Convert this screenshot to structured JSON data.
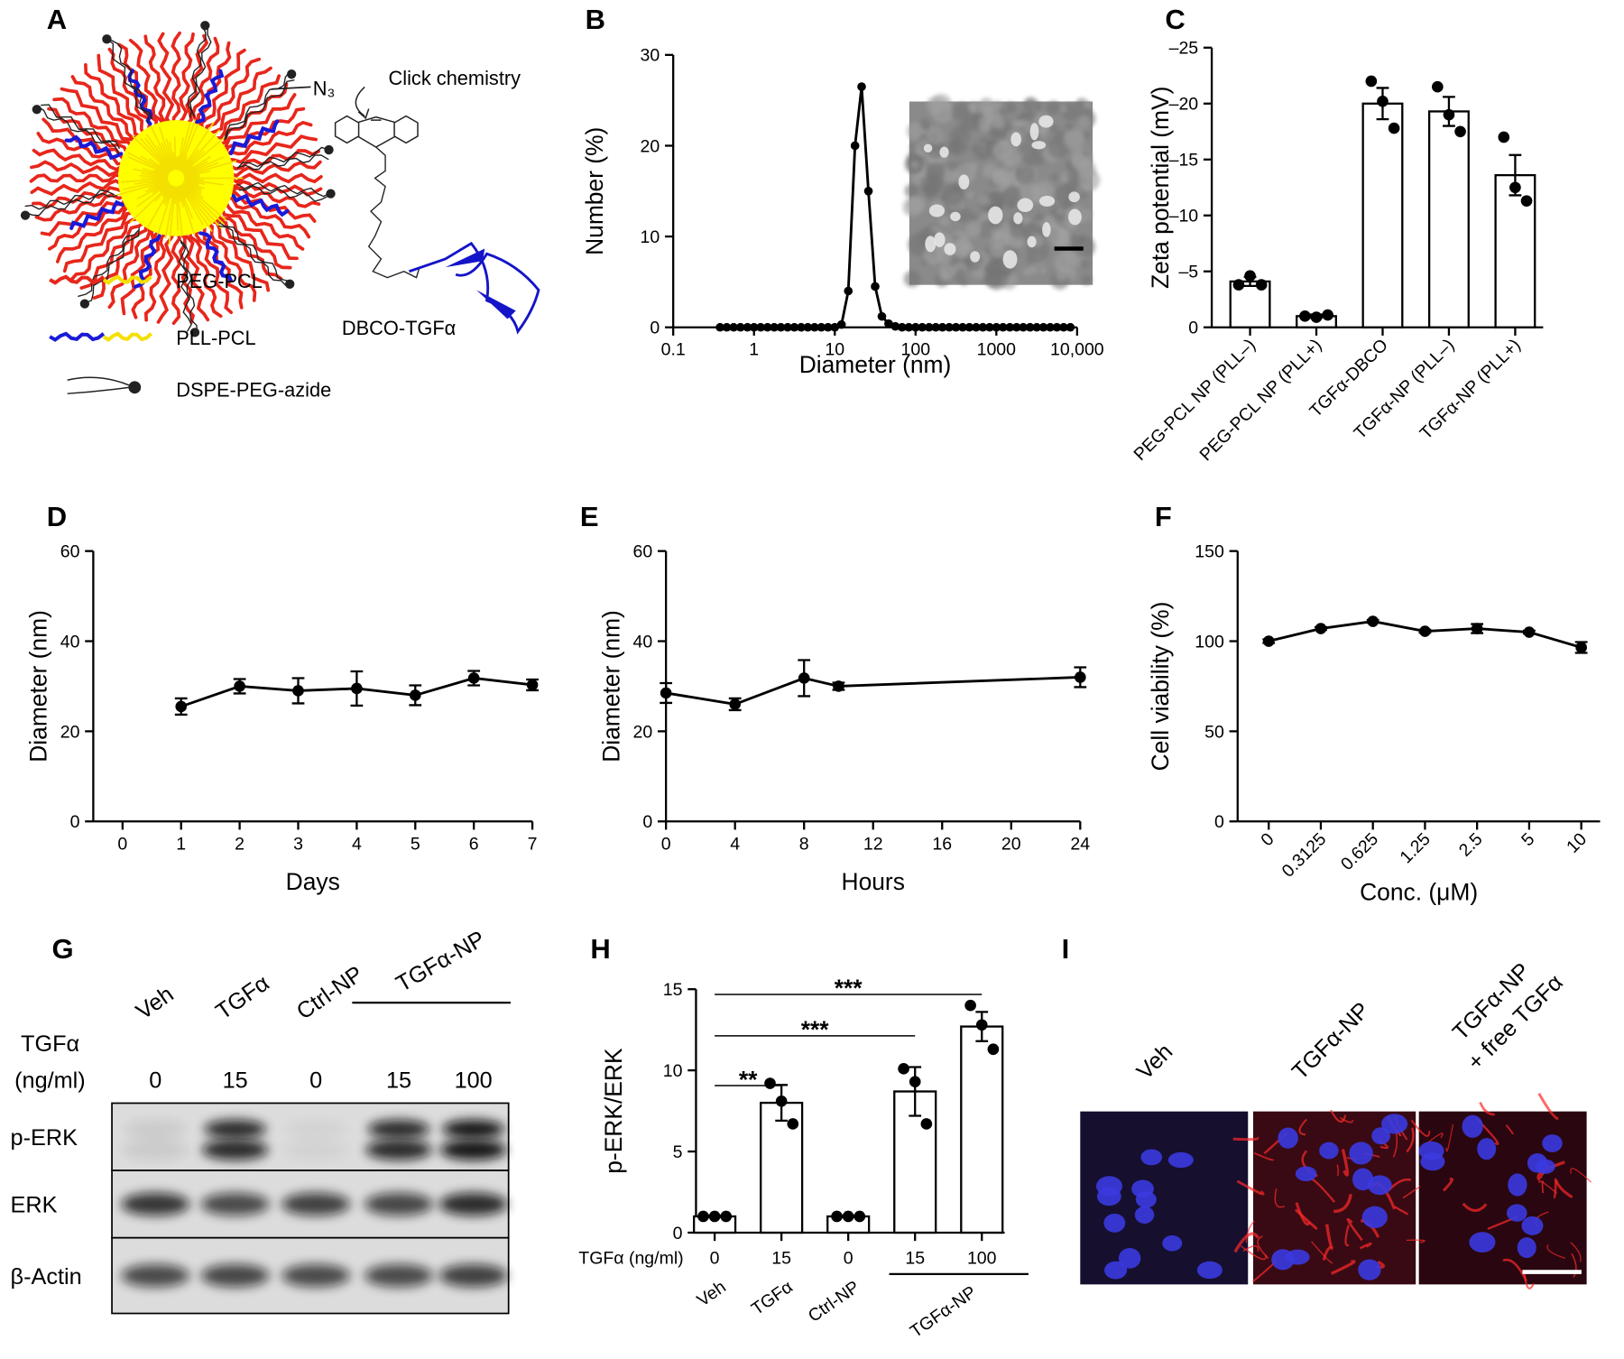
{
  "schematic": {
    "panel": "A",
    "click_label": "Click chemistry",
    "azide_label": "N₃",
    "conjugate_label": "DBCO-TGFα",
    "legend": [
      "PEG-PCL",
      "PLL-PCL",
      "DSPE-PEG-azide"
    ]
  },
  "chart_data": [
    {
      "panel": "B",
      "type": "line",
      "xlog": true,
      "x": [
        0.38,
        0.46,
        0.56,
        0.68,
        0.83,
        1,
        1.21,
        1.47,
        1.78,
        2.15,
        2.61,
        3.16,
        3.83,
        4.64,
        5.62,
        6.81,
        8.25,
        10,
        12.1,
        14.7,
        17.8,
        21.5,
        26.1,
        31.6,
        38.3,
        46.4,
        56.2,
        68.1,
        82.5,
        100,
        121,
        147,
        178,
        215,
        261,
        316,
        383,
        464,
        562,
        681,
        825,
        1000,
        1210,
        1470,
        1780,
        2150,
        2610,
        3160,
        3830,
        4640,
        5620,
        6810,
        8250
      ],
      "values": [
        0,
        0,
        0,
        0,
        0,
        0,
        0,
        0,
        0,
        0,
        0,
        0,
        0,
        0,
        0,
        0,
        0,
        0,
        0.3,
        4,
        20,
        26.5,
        15,
        4.5,
        1.2,
        0.4,
        0.1,
        0,
        0,
        0,
        0,
        0,
        0,
        0,
        0,
        0,
        0,
        0,
        0,
        0,
        0,
        0,
        0,
        0,
        0,
        0,
        0,
        0,
        0,
        0,
        0,
        0,
        0
      ],
      "xlim": [
        0.1,
        10000
      ],
      "xticks": [
        0.1,
        1,
        10,
        100,
        1000,
        {
          "value": 10000,
          "label": "10,000"
        }
      ],
      "ylim": [
        0,
        30
      ],
      "yticks": [
        0,
        10,
        20,
        30
      ],
      "xlabel": "Diameter (nm)",
      "ylabel": "Number (%)",
      "color": "#000000"
    },
    {
      "panel": "C",
      "type": "bar",
      "categories": [
        "PEG-PCL NP (PLL–)",
        "PEG-PCL NP (PLL+)",
        "TGFα-DBCO",
        "TGFα-NP (PLL–)",
        "TGFα-NP (PLL+)"
      ],
      "values": [
        -4.1,
        -1,
        -20,
        -19.3,
        -13.6
      ],
      "errors": [
        0.4,
        0.15,
        1.4,
        1.3,
        1.8
      ],
      "points": [
        [
          -3.8,
          -4.6,
          -3.8
        ],
        [
          -1,
          -0.9,
          -1.1
        ],
        [
          -22,
          -20.2,
          -17.8
        ],
        [
          -21.5,
          -19,
          -17.5
        ],
        [
          -17,
          -12.5,
          -11.3
        ]
      ],
      "ylim": [
        0,
        -25
      ],
      "yticks": [
        0,
        {
          "value": -5,
          "label": "–5"
        },
        {
          "value": -10,
          "label": "–10"
        },
        {
          "value": -15,
          "label": "–15"
        },
        {
          "value": -20,
          "label": "–20"
        },
        {
          "value": -25,
          "label": "–25"
        }
      ],
      "ylabel": "Zeta potential (mV)",
      "color": "#ffffff"
    },
    {
      "panel": "D",
      "type": "line",
      "x": [
        1,
        2,
        3,
        4,
        5,
        6,
        7
      ],
      "values": [
        25.5,
        30,
        29,
        29.5,
        28,
        31.8,
        30.3
      ],
      "errors": [
        1.8,
        1.6,
        2.8,
        3.8,
        2.2,
        1.6,
        1.2
      ],
      "xlim": [
        -0.5,
        7
      ],
      "xticks": [
        0,
        1,
        2,
        3,
        4,
        5,
        6,
        7
      ],
      "ylim": [
        0,
        60
      ],
      "yticks": [
        0,
        20,
        40,
        60
      ],
      "xlabel": "Days",
      "ylabel": "Diameter (nm)",
      "color": "#000000"
    },
    {
      "panel": "E",
      "type": "line",
      "x": [
        0,
        4,
        8,
        10,
        24
      ],
      "values": [
        28.5,
        26,
        31.8,
        30,
        32
      ],
      "errors": [
        2.2,
        1.3,
        4,
        0.8,
        2.2
      ],
      "xlim": [
        0,
        24
      ],
      "xticks": [
        0,
        4,
        8,
        12,
        16,
        20,
        24
      ],
      "ylim": [
        0,
        60
      ],
      "yticks": [
        0,
        20,
        40,
        60
      ],
      "xlabel": "Hours",
      "ylabel": "Diameter (nm)",
      "color": "#000000"
    },
    {
      "panel": "F",
      "type": "line",
      "categories": [
        "0",
        "0.3125",
        "0.625",
        "1.25",
        "2.5",
        "5",
        "10"
      ],
      "values": [
        100,
        107,
        111,
        105.5,
        107,
        105,
        96.5
      ],
      "errors": [
        1,
        0.8,
        0.8,
        0.8,
        2.5,
        0.8,
        3
      ],
      "ylim": [
        0,
        150
      ],
      "yticks": [
        0,
        50,
        100,
        150
      ],
      "xlabel": "Conc. (μM)",
      "ylabel": "Cell viability (%)",
      "color": "#000000"
    },
    {
      "panel": "H",
      "type": "bar",
      "categories": [
        "0",
        "15",
        "0",
        "15",
        "100"
      ],
      "values": [
        1,
        8,
        1,
        8.7,
        12.7
      ],
      "errors": [
        0.05,
        1.1,
        0.05,
        1.5,
        0.9
      ],
      "points": [
        [
          1,
          1,
          1
        ],
        [
          9.2,
          8.1,
          6.7
        ],
        [
          1,
          1,
          1
        ],
        [
          10.1,
          9.3,
          6.7
        ],
        [
          14,
          12.8,
          11.3
        ]
      ],
      "ylim": [
        0,
        15
      ],
      "yticks": [
        0,
        5,
        10,
        15
      ],
      "ylabel": "p-ERK/ERK",
      "x_row_label": "TGFα (ng/ml)",
      "groups": [
        "Veh",
        "TGFα",
        "Ctrl-NP",
        "TGFα-NP"
      ],
      "significance": [
        "**",
        "***",
        "***"
      ],
      "color": "#ffffff"
    }
  ],
  "blot": {
    "panel": "G",
    "lanes": [
      "Veh",
      "TGFα",
      "Ctrl-NP"
    ],
    "group": "TGFα-NP",
    "dose_label": [
      "TGFα",
      "(ng/ml)"
    ],
    "doses": [
      0,
      15,
      0,
      15,
      100
    ],
    "rows": [
      "p-ERK",
      "ERK",
      "β-Actin"
    ]
  },
  "images": {
    "panel": "I",
    "labels": [
      "Veh",
      "TGFα-NP"
    ],
    "combo_label": [
      "TGFα-NP",
      "+ free TGFα"
    ]
  }
}
